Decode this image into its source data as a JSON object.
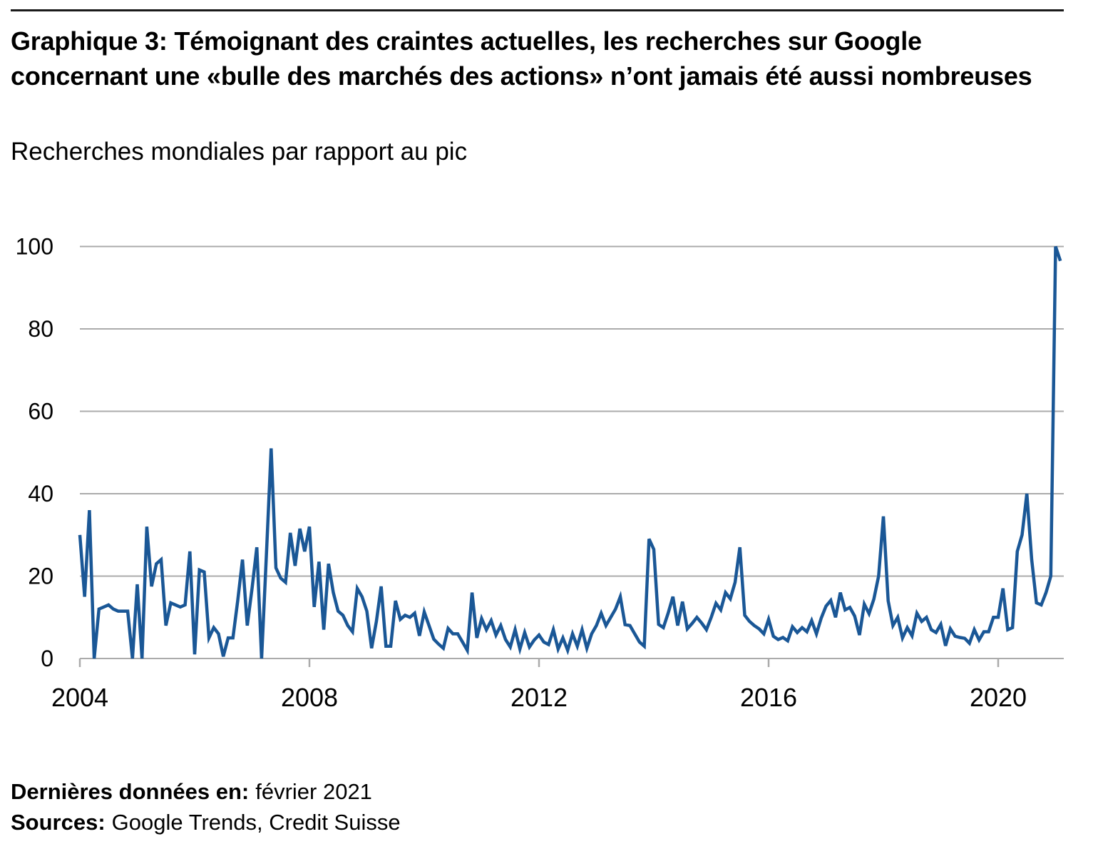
{
  "header": {
    "title": "Graphique 3: Témoignant des craintes actuelles, les recherches sur Google concernant une «bulle des marchés des actions» n’ont jamais été aussi nombreuses",
    "subtitle": "Recherches mondiales par rapport au pic"
  },
  "footer": {
    "last_data_label": "Dernières données en:",
    "last_data_value": "février 2021",
    "sources_label": "Sources:",
    "sources_value": "Google Trends, Credit Suisse"
  },
  "chart_data": {
    "type": "line",
    "title": "Graphique 3: Témoignant des craintes actuelles, les recherches sur Google concernant une «bulle des marchés des actions» n’ont jamais été aussi nombreuses",
    "subtitle": "Recherches mondiales par rapport au pic",
    "x_start": {
      "year": 2004,
      "month": 1
    },
    "x_end": {
      "year": 2021,
      "month": 2
    },
    "x_tick_labels": [
      "2004",
      "2008",
      "2012",
      "2016",
      "2020"
    ],
    "y_ticks": [
      0,
      20,
      40,
      60,
      80,
      100
    ],
    "ylim": [
      0,
      100
    ],
    "grid": true,
    "legend_position": "none",
    "line_color": "#1A5796",
    "grid_color": "#ABABAB",
    "series": [
      {
        "label": "Recherches mondiales par rapport au pic",
        "monthly_values": [
          30,
          15,
          36,
          0,
          12,
          12.5,
          13,
          12,
          11.5,
          11.5,
          11.5,
          0,
          18,
          0,
          32,
          17.5,
          23,
          24,
          8,
          13.5,
          13,
          12.5,
          13,
          26,
          1,
          21.5,
          21,
          5,
          7.5,
          6,
          0.5,
          5,
          5,
          14,
          24,
          8,
          17,
          27,
          0,
          25,
          51,
          22,
          19.5,
          18.5,
          30.5,
          22.5,
          31.5,
          26,
          32,
          12.5,
          23.5,
          7,
          23,
          16,
          11.5,
          10.5,
          8,
          6.5,
          17,
          15,
          11.5,
          2.5,
          9,
          17.5,
          3,
          3,
          14,
          9.5,
          10.5,
          10,
          11,
          5.5,
          11.3,
          8,
          4.7,
          3.5,
          2.5,
          7.3,
          6,
          6,
          4,
          2,
          16,
          5,
          9.7,
          7,
          9.2,
          5.7,
          8,
          4.6,
          2.8,
          7,
          2.3,
          6.3,
          2.8,
          4.5,
          5.7,
          4,
          3.4,
          7,
          2.3,
          5,
          2,
          6,
          3,
          7,
          2.5,
          6,
          8,
          11,
          8,
          10,
          12,
          15,
          8.2,
          8,
          6,
          4,
          3,
          29,
          26.5,
          8.3,
          7.5,
          11,
          15,
          8,
          13.8,
          7.2,
          8.5,
          10,
          8.6,
          7,
          10,
          13.4,
          11.8,
          16,
          14.5,
          18.5,
          27,
          10.5,
          9,
          8,
          7.2,
          6,
          9.5,
          5.4,
          4.6,
          5.1,
          4.3,
          7.7,
          6.3,
          7.5,
          6.5,
          9.2,
          6,
          9.8,
          12.7,
          14.1,
          10,
          16,
          11.8,
          12.4,
          10.3,
          5.7,
          13.2,
          10.9,
          14.4,
          20,
          34.5,
          14,
          8,
          10,
          5,
          7.5,
          5.5,
          11,
          9,
          10,
          7,
          6.3,
          8.3,
          3.1,
          7.2,
          5.4,
          5.1,
          4.9,
          3.7,
          7,
          4.5,
          6.5,
          6.5,
          10,
          10,
          17,
          7,
          7.5,
          26,
          30,
          40,
          24,
          13.5,
          13,
          16,
          20,
          100,
          96.5
        ]
      }
    ]
  }
}
